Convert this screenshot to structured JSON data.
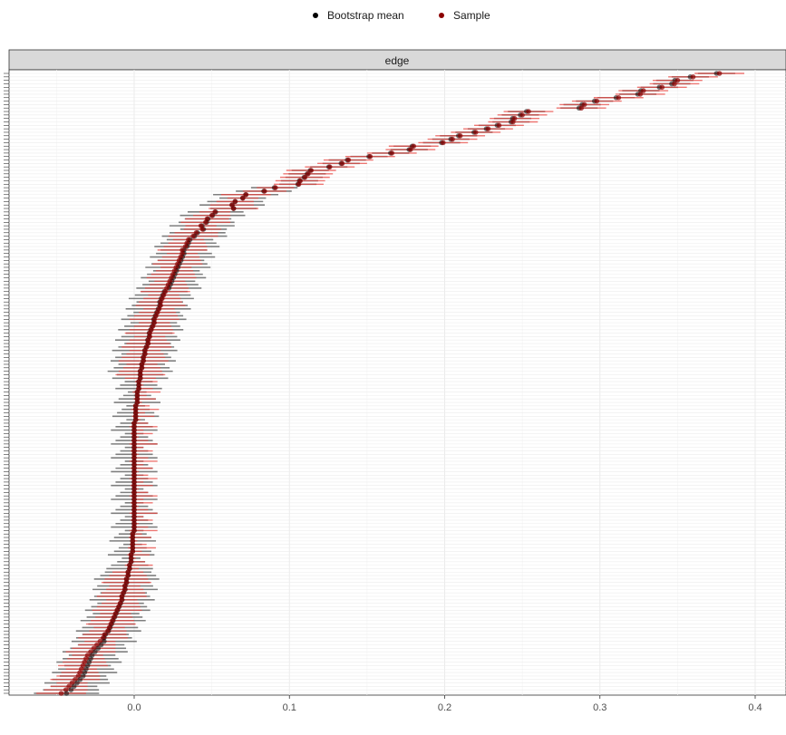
{
  "legend": {
    "items": [
      {
        "label": "Bootstrap mean",
        "color": "#000000"
      },
      {
        "label": "Sample",
        "color": "#8b0000"
      }
    ]
  },
  "chart_data": {
    "type": "scatter",
    "facet_label": "edge",
    "xlim": [
      -0.05,
      0.4
    ],
    "x_ticks": [
      0.0,
      0.1,
      0.2,
      0.3,
      0.4
    ],
    "x_tick_labels": [
      "0.0",
      "0.1",
      "0.2",
      "0.3",
      "0.4"
    ],
    "grid": true,
    "legend_position": "top",
    "n_edges": 180,
    "series": [
      {
        "name": "Bootstrap mean",
        "color": "#000000",
        "interval_color": "#555555"
      },
      {
        "name": "Sample",
        "color": "#8b0000",
        "interval_color": "#e8403a"
      }
    ],
    "sample_values": [
      0.377,
      0.36,
      0.35,
      0.348,
      0.34,
      0.328,
      0.326,
      0.312,
      0.298,
      0.29,
      0.288,
      0.254,
      0.25,
      0.245,
      0.244,
      0.235,
      0.228,
      0.22,
      0.21,
      0.205,
      0.199,
      0.18,
      0.178,
      0.166,
      0.152,
      0.138,
      0.134,
      0.126,
      0.114,
      0.112,
      0.11,
      0.107,
      0.106,
      0.091,
      0.084,
      0.072,
      0.07,
      0.065,
      0.063,
      0.064,
      0.052,
      0.05,
      0.047,
      0.046,
      0.043,
      0.044,
      0.04,
      0.038,
      0.035,
      0.034,
      0.033,
      0.031,
      0.031,
      0.03,
      0.029,
      0.028,
      0.027,
      0.026,
      0.025,
      0.024,
      0.023,
      0.022,
      0.021,
      0.02,
      0.019,
      0.018,
      0.017,
      0.017,
      0.016,
      0.015,
      0.014,
      0.013,
      0.013,
      0.012,
      0.011,
      0.01,
      0.01,
      0.009,
      0.009,
      0.008,
      0.007,
      0.007,
      0.006,
      0.006,
      0.005,
      0.005,
      0.004,
      0.004,
      0.004,
      0.003,
      0.003,
      0.003,
      0.002,
      0.002,
      0.002,
      0.002,
      0.001,
      0.001,
      0.001,
      0.001,
      0.001,
      0.0,
      0.0,
      0.0,
      0.0,
      0.0,
      0.0,
      0.0,
      0.0,
      0.0,
      0.0,
      0.0,
      0.0,
      0.0,
      0.0,
      0.0,
      0.0,
      0.0,
      0.0,
      0.0,
      0.0,
      0.0,
      0.0,
      0.0,
      0.0,
      0.0,
      0.0,
      0.0,
      0.0,
      0.0,
      0.0,
      0.0,
      0.0,
      -0.001,
      -0.001,
      -0.001,
      -0.001,
      -0.001,
      -0.001,
      -0.002,
      -0.002,
      -0.002,
      -0.003,
      -0.003,
      -0.004,
      -0.004,
      -0.005,
      -0.005,
      -0.006,
      -0.006,
      -0.007,
      -0.008,
      -0.008,
      -0.009,
      -0.01,
      -0.011,
      -0.012,
      -0.013,
      -0.014,
      -0.015,
      -0.016,
      -0.017,
      -0.019,
      -0.02,
      -0.022,
      -0.024,
      -0.026,
      -0.028,
      -0.03,
      -0.031,
      -0.032,
      -0.033,
      -0.034,
      -0.035,
      -0.036,
      -0.038,
      -0.04,
      -0.042,
      -0.044,
      -0.047
    ]
  }
}
